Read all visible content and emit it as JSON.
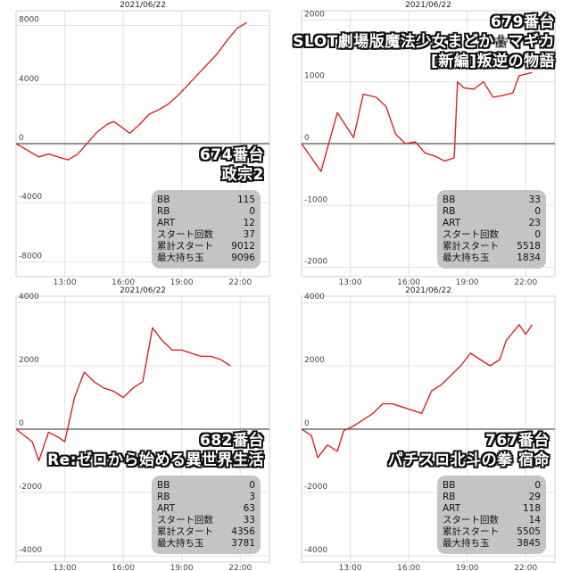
{
  "panels": [
    {
      "title_lines": [
        "674番台",
        "政宗2"
      ],
      "stats": [
        {
          "label": "BB",
          "value": "115"
        },
        {
          "label": "RB",
          "value": "0"
        },
        {
          "label": "ART",
          "value": "12"
        },
        {
          "label": "スタート回数",
          "value": "37"
        },
        {
          "label": "累計スタート",
          "value": "9012"
        },
        {
          "label": "最大持ち玉",
          "value": "9096"
        }
      ]
    },
    {
      "title_lines": [
        "679番台",
        "SLOT劇場版魔法少女まどか☆マギカ",
        "[新編]叛逆の物語"
      ],
      "stats": [
        {
          "label": "BB",
          "value": "33"
        },
        {
          "label": "RB",
          "value": "0"
        },
        {
          "label": "ART",
          "value": "23"
        },
        {
          "label": "スタート回数",
          "value": "0"
        },
        {
          "label": "累計スタート",
          "value": "5518"
        },
        {
          "label": "最大持ち玉",
          "value": "1834"
        }
      ]
    },
    {
      "title_lines": [
        "682番台",
        "Re:ゼロから始める異世界生活"
      ],
      "stats": [
        {
          "label": "BB",
          "value": "0"
        },
        {
          "label": "RB",
          "value": "3"
        },
        {
          "label": "ART",
          "value": "63"
        },
        {
          "label": "スタート回数",
          "value": "33"
        },
        {
          "label": "累計スタート",
          "value": "4356"
        },
        {
          "label": "最大持ち玉",
          "value": "3781"
        }
      ]
    },
    {
      "title_lines": [
        "767番台",
        "パチスロ北斗の拳 宿命"
      ],
      "stats": [
        {
          "label": "BB",
          "value": "0"
        },
        {
          "label": "RB",
          "value": "29"
        },
        {
          "label": "ART",
          "value": "118"
        },
        {
          "label": "スタート回数",
          "value": "14"
        },
        {
          "label": "累計スタート",
          "value": "5505"
        },
        {
          "label": "最大持ち玉",
          "value": "3845"
        }
      ]
    }
  ],
  "chart_data": [
    {
      "type": "line",
      "title": "2021/06/22",
      "line_color": "#e02020",
      "ylim": [
        -9000,
        9000
      ],
      "y_ticks": [
        8000,
        4000,
        0,
        -4000,
        -8000
      ],
      "x_range": [
        "10:30",
        "23:30"
      ],
      "x_ticks": [
        "13:00",
        "16:00",
        "19:00",
        "22:00"
      ],
      "grid": true,
      "points": [
        [
          "10:30",
          0
        ],
        [
          "11:40",
          -900
        ],
        [
          "12:10",
          -700
        ],
        [
          "12:40",
          -900
        ],
        [
          "13:10",
          -1100
        ],
        [
          "13:40",
          -700
        ],
        [
          "14:00",
          -200
        ],
        [
          "14:40",
          800
        ],
        [
          "15:10",
          1300
        ],
        [
          "15:30",
          1500
        ],
        [
          "15:50",
          1200
        ],
        [
          "16:20",
          700
        ],
        [
          "16:50",
          1300
        ],
        [
          "17:20",
          2000
        ],
        [
          "17:50",
          2300
        ],
        [
          "18:20",
          2700
        ],
        [
          "18:50",
          3300
        ],
        [
          "19:20",
          4000
        ],
        [
          "19:50",
          4700
        ],
        [
          "20:20",
          5400
        ],
        [
          "20:50",
          6100
        ],
        [
          "21:20",
          7000
        ],
        [
          "21:50",
          7800
        ],
        [
          "22:20",
          8200
        ]
      ]
    },
    {
      "type": "line",
      "title": "2021/06/22",
      "line_color": "#e02020",
      "ylim": [
        -2150,
        2150
      ],
      "y_ticks": [
        2000,
        1000,
        0,
        -1000,
        -2000
      ],
      "x_range": [
        "10:30",
        "23:30"
      ],
      "x_ticks": [
        "13:00",
        "16:00",
        "19:00",
        "22:00"
      ],
      "grid": true,
      "points": [
        [
          "10:30",
          0
        ],
        [
          "11:30",
          -450
        ],
        [
          "12:20",
          500
        ],
        [
          "13:10",
          100
        ],
        [
          "13:40",
          800
        ],
        [
          "14:20",
          750
        ],
        [
          "14:50",
          600
        ],
        [
          "15:20",
          150
        ],
        [
          "15:50",
          0
        ],
        [
          "16:20",
          30
        ],
        [
          "16:50",
          -150
        ],
        [
          "17:20",
          -200
        ],
        [
          "17:50",
          -280
        ],
        [
          "18:20",
          -230
        ],
        [
          "18:30",
          1000
        ],
        [
          "18:50",
          900
        ],
        [
          "19:20",
          880
        ],
        [
          "19:50",
          1000
        ],
        [
          "20:20",
          750
        ],
        [
          "20:50",
          780
        ],
        [
          "21:20",
          820
        ],
        [
          "21:40",
          1100
        ],
        [
          "22:20",
          1150
        ]
      ]
    },
    {
      "type": "line",
      "title": "2021/06/22",
      "line_color": "#e02020",
      "ylim": [
        -4200,
        4200
      ],
      "y_ticks": [
        4000,
        2000,
        0,
        -2000,
        -4000
      ],
      "x_range": [
        "10:30",
        "23:30"
      ],
      "x_ticks": [
        "13:00",
        "16:00",
        "19:00",
        "22:00"
      ],
      "grid": true,
      "points": [
        [
          "10:30",
          0
        ],
        [
          "11:20",
          -400
        ],
        [
          "11:40",
          -1000
        ],
        [
          "12:10",
          -100
        ],
        [
          "12:40",
          -250
        ],
        [
          "13:00",
          -400
        ],
        [
          "13:30",
          1000
        ],
        [
          "14:00",
          1800
        ],
        [
          "14:30",
          1500
        ],
        [
          "15:00",
          1300
        ],
        [
          "15:30",
          1200
        ],
        [
          "16:00",
          1000
        ],
        [
          "16:30",
          1300
        ],
        [
          "17:00",
          1500
        ],
        [
          "17:30",
          3200
        ],
        [
          "18:00",
          2800
        ],
        [
          "18:30",
          2500
        ],
        [
          "19:00",
          2500
        ],
        [
          "19:30",
          2400
        ],
        [
          "20:00",
          2300
        ],
        [
          "20:30",
          2300
        ],
        [
          "21:00",
          2200
        ],
        [
          "21:30",
          2000
        ]
      ]
    },
    {
      "type": "line",
      "title": "2021/06/22",
      "line_color": "#e02020",
      "ylim": [
        -4200,
        4200
      ],
      "y_ticks": [
        4000,
        2000,
        0,
        -2000,
        -4000
      ],
      "x_range": [
        "10:30",
        "23:30"
      ],
      "x_ticks": [
        "13:00",
        "16:00",
        "19:00",
        "22:00"
      ],
      "grid": true,
      "points": [
        [
          "10:30",
          0
        ],
        [
          "11:00",
          -200
        ],
        [
          "11:20",
          -900
        ],
        [
          "11:50",
          -500
        ],
        [
          "12:20",
          -700
        ],
        [
          "12:40",
          -50
        ],
        [
          "13:10",
          100
        ],
        [
          "13:40",
          300
        ],
        [
          "14:10",
          500
        ],
        [
          "14:40",
          800
        ],
        [
          "15:10",
          800
        ],
        [
          "15:40",
          700
        ],
        [
          "16:10",
          600
        ],
        [
          "16:40",
          500
        ],
        [
          "17:10",
          1200
        ],
        [
          "17:40",
          1400
        ],
        [
          "18:10",
          1700
        ],
        [
          "18:40",
          2000
        ],
        [
          "19:10",
          2400
        ],
        [
          "19:40",
          2200
        ],
        [
          "20:10",
          2000
        ],
        [
          "20:40",
          2200
        ],
        [
          "21:00",
          2800
        ],
        [
          "21:40",
          3300
        ],
        [
          "22:00",
          3000
        ],
        [
          "22:20",
          3300
        ]
      ]
    }
  ]
}
